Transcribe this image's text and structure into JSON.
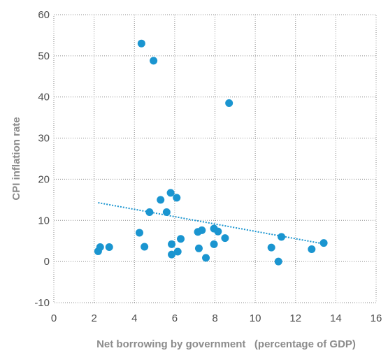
{
  "chart_data": {
    "type": "scatter",
    "title": "",
    "xlabel": "Net borrowing by government   (percentage of GDP)",
    "ylabel": "CPI inflation rate",
    "xlim": [
      0,
      16
    ],
    "ylim": [
      -10,
      60
    ],
    "xticks": [
      "0",
      "2",
      "4",
      "6",
      "8",
      "10",
      "12",
      "14",
      "16"
    ],
    "yticks": [
      "-10",
      "0",
      "10",
      "20",
      "30",
      "40",
      "50",
      "60"
    ],
    "grid": true,
    "point_color": "#1a95d0",
    "trendline_color": "#1a95d0",
    "points": [
      {
        "x": 2.2,
        "y": 2.5
      },
      {
        "x": 2.3,
        "y": 3.5
      },
      {
        "x": 2.75,
        "y": 3.5
      },
      {
        "x": 4.25,
        "y": 7.0
      },
      {
        "x": 4.35,
        "y": 53.0
      },
      {
        "x": 4.5,
        "y": 3.6
      },
      {
        "x": 4.75,
        "y": 12.0
      },
      {
        "x": 4.95,
        "y": 48.8
      },
      {
        "x": 5.3,
        "y": 15.0
      },
      {
        "x": 5.6,
        "y": 12.0
      },
      {
        "x": 5.8,
        "y": 16.7
      },
      {
        "x": 5.85,
        "y": 4.2
      },
      {
        "x": 5.85,
        "y": 1.7
      },
      {
        "x": 6.1,
        "y": 15.5
      },
      {
        "x": 6.15,
        "y": 2.4
      },
      {
        "x": 6.3,
        "y": 5.5
      },
      {
        "x": 7.15,
        "y": 7.2
      },
      {
        "x": 7.2,
        "y": 3.2
      },
      {
        "x": 7.35,
        "y": 7.6
      },
      {
        "x": 7.55,
        "y": 0.9
      },
      {
        "x": 7.95,
        "y": 8.0
      },
      {
        "x": 7.95,
        "y": 4.2
      },
      {
        "x": 8.15,
        "y": 7.3
      },
      {
        "x": 8.5,
        "y": 5.7
      },
      {
        "x": 8.7,
        "y": 38.5
      },
      {
        "x": 10.8,
        "y": 3.4
      },
      {
        "x": 11.15,
        "y": 0.0
      },
      {
        "x": 11.3,
        "y": 6.0
      },
      {
        "x": 12.8,
        "y": 3.0
      },
      {
        "x": 13.4,
        "y": 4.5
      }
    ],
    "trendline": {
      "x": [
        2.2,
        13.4
      ],
      "y": [
        14.3,
        4.3
      ]
    }
  }
}
